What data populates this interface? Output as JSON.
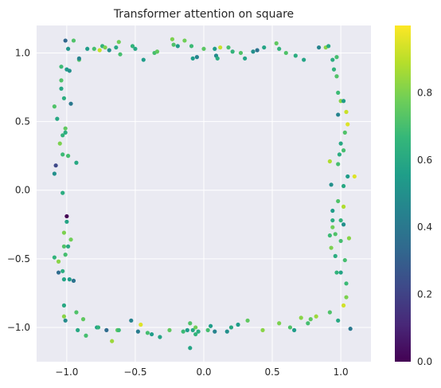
{
  "chart_data": {
    "type": "scatter",
    "title": "Transformer attention on square",
    "xlabel": "",
    "ylabel": "",
    "xlim": [
      -1.22,
      1.22
    ],
    "ylim": [
      -1.25,
      1.2
    ],
    "xticks": [
      -1.0,
      -0.5,
      0.0,
      0.5,
      1.0
    ],
    "xtick_labels": [
      "−1.0",
      "−0.5",
      "0.0",
      "0.5",
      "1.0"
    ],
    "yticks": [
      -1.0,
      -0.5,
      0.0,
      0.5,
      1.0
    ],
    "ytick_labels": [
      "−1.0",
      "−0.5",
      "0.0",
      "0.5",
      "1.0"
    ],
    "grid": true,
    "background": "#eaeaf2",
    "colorbar": {
      "colormap": "viridis",
      "range": [
        0.0,
        1.0
      ],
      "ticks": [
        0.0,
        0.2,
        0.4,
        0.6,
        0.8
      ],
      "tick_labels": [
        "0.0",
        "0.2",
        "0.4",
        "0.6",
        "0.8"
      ]
    },
    "points": [
      {
        "x": -1.01,
        "y": 1.09,
        "v": 0.33
      },
      {
        "x": -0.95,
        "y": 1.09,
        "v": 0.72
      },
      {
        "x": -0.99,
        "y": 1.03,
        "v": 0.52
      },
      {
        "x": -0.91,
        "y": 0.95,
        "v": 0.72
      },
      {
        "x": -0.91,
        "y": 0.96,
        "v": 0.45
      },
      {
        "x": -0.85,
        "y": 1.03,
        "v": 0.55
      },
      {
        "x": -0.8,
        "y": 1.03,
        "v": 0.7
      },
      {
        "x": -0.76,
        "y": 1.02,
        "v": 0.92
      },
      {
        "x": -0.74,
        "y": 1.05,
        "v": 0.65
      },
      {
        "x": -0.72,
        "y": 1.04,
        "v": 0.8
      },
      {
        "x": -0.69,
        "y": 1.02,
        "v": 0.5
      },
      {
        "x": -0.64,
        "y": 1.04,
        "v": 0.6
      },
      {
        "x": -0.62,
        "y": 1.08,
        "v": 0.78
      },
      {
        "x": -0.61,
        "y": 0.99,
        "v": 0.7
      },
      {
        "x": -0.52,
        "y": 1.05,
        "v": 0.65
      },
      {
        "x": -0.5,
        "y": 1.03,
        "v": 0.6
      },
      {
        "x": -0.44,
        "y": 0.95,
        "v": 0.55
      },
      {
        "x": -0.36,
        "y": 1.0,
        "v": 0.7
      },
      {
        "x": -0.34,
        "y": 1.01,
        "v": 0.75
      },
      {
        "x": -0.23,
        "y": 1.1,
        "v": 0.8
      },
      {
        "x": -0.22,
        "y": 1.06,
        "v": 0.72
      },
      {
        "x": -0.19,
        "y": 1.05,
        "v": 0.55
      },
      {
        "x": -0.14,
        "y": 1.09,
        "v": 0.78
      },
      {
        "x": -0.09,
        "y": 1.05,
        "v": 0.68
      },
      {
        "x": -0.08,
        "y": 0.96,
        "v": 0.55
      },
      {
        "x": -0.05,
        "y": 0.97,
        "v": 0.45
      },
      {
        "x": 0.0,
        "y": 1.03,
        "v": 0.74
      },
      {
        "x": 0.08,
        "y": 1.03,
        "v": 0.55
      },
      {
        "x": 0.09,
        "y": 0.98,
        "v": 0.48
      },
      {
        "x": 0.1,
        "y": 0.96,
        "v": 0.62
      },
      {
        "x": 0.12,
        "y": 1.04,
        "v": 0.92
      },
      {
        "x": 0.18,
        "y": 1.04,
        "v": 0.7
      },
      {
        "x": 0.21,
        "y": 1.01,
        "v": 0.65
      },
      {
        "x": 0.27,
        "y": 1.0,
        "v": 0.72
      },
      {
        "x": 0.3,
        "y": 0.96,
        "v": 0.58
      },
      {
        "x": 0.36,
        "y": 1.01,
        "v": 0.5
      },
      {
        "x": 0.39,
        "y": 1.02,
        "v": 0.38
      },
      {
        "x": 0.44,
        "y": 1.04,
        "v": 0.58
      },
      {
        "x": 0.53,
        "y": 1.07,
        "v": 0.75
      },
      {
        "x": 0.55,
        "y": 1.03,
        "v": 0.65
      },
      {
        "x": 0.6,
        "y": 1.0,
        "v": 0.72
      },
      {
        "x": 0.67,
        "y": 0.98,
        "v": 0.62
      },
      {
        "x": 0.73,
        "y": 0.95,
        "v": 0.58
      },
      {
        "x": 0.84,
        "y": 1.04,
        "v": 0.45
      },
      {
        "x": 0.89,
        "y": 1.04,
        "v": 0.82
      },
      {
        "x": 0.91,
        "y": 1.05,
        "v": 0.6
      },
      {
        "x": 0.94,
        "y": 0.95,
        "v": 0.62
      },
      {
        "x": 0.97,
        "y": 0.97,
        "v": 0.7
      },
      {
        "x": -1.04,
        "y": 0.9,
        "v": 0.68
      },
      {
        "x": -1.0,
        "y": 0.88,
        "v": 0.55
      },
      {
        "x": -0.98,
        "y": 0.87,
        "v": 0.5
      },
      {
        "x": -1.04,
        "y": 0.8,
        "v": 0.72
      },
      {
        "x": -1.04,
        "y": 0.74,
        "v": 0.6
      },
      {
        "x": -1.02,
        "y": 0.67,
        "v": 0.62
      },
      {
        "x": -1.09,
        "y": 0.61,
        "v": 0.72
      },
      {
        "x": -0.97,
        "y": 0.63,
        "v": 0.4
      },
      {
        "x": -1.07,
        "y": 0.52,
        "v": 0.6
      },
      {
        "x": -1.01,
        "y": 0.45,
        "v": 0.75
      },
      {
        "x": -1.01,
        "y": 0.42,
        "v": 0.62
      },
      {
        "x": -1.03,
        "y": 0.4,
        "v": 0.65
      },
      {
        "x": -1.05,
        "y": 0.34,
        "v": 0.8
      },
      {
        "x": -1.03,
        "y": 0.26,
        "v": 0.68
      },
      {
        "x": -0.99,
        "y": 0.25,
        "v": 0.7
      },
      {
        "x": -1.08,
        "y": 0.18,
        "v": 0.22
      },
      {
        "x": -1.09,
        "y": 0.12,
        "v": 0.5
      },
      {
        "x": -0.93,
        "y": 0.2,
        "v": 0.6
      },
      {
        "x": -1.03,
        "y": -0.02,
        "v": 0.62
      },
      {
        "x": -1.0,
        "y": -0.19,
        "v": 0.0
      },
      {
        "x": -1.0,
        "y": -0.23,
        "v": 0.58
      },
      {
        "x": -1.02,
        "y": -0.31,
        "v": 0.8
      },
      {
        "x": -0.97,
        "y": -0.36,
        "v": 0.78
      },
      {
        "x": -1.02,
        "y": -0.41,
        "v": 0.72
      },
      {
        "x": -0.99,
        "y": -0.41,
        "v": 0.6
      },
      {
        "x": -1.01,
        "y": -0.47,
        "v": 0.7
      },
      {
        "x": -1.09,
        "y": -0.49,
        "v": 0.65
      },
      {
        "x": -1.06,
        "y": -0.52,
        "v": 0.82
      },
      {
        "x": -1.06,
        "y": -0.6,
        "v": 0.35
      },
      {
        "x": -1.03,
        "y": -0.59,
        "v": 0.62
      },
      {
        "x": -1.02,
        "y": -0.65,
        "v": 0.58
      },
      {
        "x": -0.98,
        "y": -0.65,
        "v": 0.55
      },
      {
        "x": -0.95,
        "y": -0.66,
        "v": 0.38
      },
      {
        "x": -1.02,
        "y": -0.84,
        "v": 0.6
      },
      {
        "x": -1.02,
        "y": -0.92,
        "v": 0.82
      },
      {
        "x": -1.01,
        "y": -0.95,
        "v": 0.48
      },
      {
        "x": -0.93,
        "y": -0.89,
        "v": 0.72
      },
      {
        "x": -0.88,
        "y": -0.94,
        "v": 0.75
      },
      {
        "x": -0.92,
        "y": -1.02,
        "v": 0.6
      },
      {
        "x": -0.86,
        "y": -1.06,
        "v": 0.7
      },
      {
        "x": -0.78,
        "y": -1.0,
        "v": 0.55
      },
      {
        "x": -0.77,
        "y": -1.0,
        "v": 0.65
      },
      {
        "x": -0.71,
        "y": -1.02,
        "v": 0.35
      },
      {
        "x": -0.67,
        "y": -1.1,
        "v": 0.85
      },
      {
        "x": -0.63,
        "y": -1.02,
        "v": 0.75
      },
      {
        "x": -0.62,
        "y": -1.02,
        "v": 0.68
      },
      {
        "x": -0.53,
        "y": -0.95,
        "v": 0.45
      },
      {
        "x": -0.48,
        "y": -1.03,
        "v": 0.42
      },
      {
        "x": -0.46,
        "y": -0.98,
        "v": 0.95
      },
      {
        "x": -0.41,
        "y": -1.04,
        "v": 0.7
      },
      {
        "x": -0.38,
        "y": -1.05,
        "v": 0.55
      },
      {
        "x": -0.32,
        "y": -1.07,
        "v": 0.58
      },
      {
        "x": -0.25,
        "y": -1.02,
        "v": 0.75
      },
      {
        "x": -0.15,
        "y": -1.03,
        "v": 0.68
      },
      {
        "x": -0.12,
        "y": -1.02,
        "v": 0.55
      },
      {
        "x": -0.1,
        "y": -0.97,
        "v": 0.72
      },
      {
        "x": -0.08,
        "y": -1.02,
        "v": 0.6
      },
      {
        "x": -0.06,
        "y": -1.0,
        "v": 0.78
      },
      {
        "x": -0.04,
        "y": -1.03,
        "v": 0.62
      },
      {
        "x": -0.1,
        "y": -1.15,
        "v": 0.58
      },
      {
        "x": -0.06,
        "y": -1.05,
        "v": 0.65
      },
      {
        "x": 0.03,
        "y": -1.02,
        "v": 0.7
      },
      {
        "x": 0.05,
        "y": -0.99,
        "v": 0.55
      },
      {
        "x": 0.08,
        "y": -1.03,
        "v": 0.45
      },
      {
        "x": 0.17,
        "y": -1.03,
        "v": 0.5
      },
      {
        "x": 0.2,
        "y": -1.0,
        "v": 0.6
      },
      {
        "x": 0.25,
        "y": -0.98,
        "v": 0.55
      },
      {
        "x": 0.32,
        "y": -0.95,
        "v": 0.75
      },
      {
        "x": 0.43,
        "y": -1.02,
        "v": 0.82
      },
      {
        "x": 0.55,
        "y": -0.97,
        "v": 0.8
      },
      {
        "x": 0.63,
        "y": -1.0,
        "v": 0.72
      },
      {
        "x": 0.66,
        "y": -1.02,
        "v": 0.55
      },
      {
        "x": 0.71,
        "y": -0.93,
        "v": 0.82
      },
      {
        "x": 0.76,
        "y": -0.97,
        "v": 0.7
      },
      {
        "x": 0.78,
        "y": -0.94,
        "v": 0.75
      },
      {
        "x": 0.82,
        "y": -0.92,
        "v": 0.85
      },
      {
        "x": 0.92,
        "y": -0.89,
        "v": 0.72
      },
      {
        "x": 0.98,
        "y": -0.95,
        "v": 0.6
      },
      {
        "x": 1.02,
        "y": -0.84,
        "v": 0.93
      },
      {
        "x": 1.04,
        "y": -0.78,
        "v": 0.8
      },
      {
        "x": 1.07,
        "y": -1.01,
        "v": 0.4
      },
      {
        "x": 1.0,
        "y": 0.65,
        "v": 0.82
      },
      {
        "x": 1.02,
        "y": 0.65,
        "v": 0.55
      },
      {
        "x": 0.98,
        "y": 0.71,
        "v": 0.68
      },
      {
        "x": 1.04,
        "y": 0.57,
        "v": 0.92
      },
      {
        "x": 1.05,
        "y": 0.48,
        "v": 0.95
      },
      {
        "x": 0.98,
        "y": 0.55,
        "v": 0.45
      },
      {
        "x": 1.03,
        "y": 0.42,
        "v": 0.72
      },
      {
        "x": 1.0,
        "y": 0.34,
        "v": 0.6
      },
      {
        "x": 1.02,
        "y": 0.29,
        "v": 0.7
      },
      {
        "x": 0.99,
        "y": 0.26,
        "v": 0.62
      },
      {
        "x": 0.92,
        "y": 0.21,
        "v": 0.88
      },
      {
        "x": 0.98,
        "y": 0.19,
        "v": 0.7
      },
      {
        "x": 1.05,
        "y": 0.1,
        "v": 0.55
      },
      {
        "x": 1.1,
        "y": 0.1,
        "v": 0.95
      },
      {
        "x": 0.93,
        "y": 0.04,
        "v": 0.5
      },
      {
        "x": 1.02,
        "y": 0.03,
        "v": 0.6
      },
      {
        "x": 0.98,
        "y": -0.08,
        "v": 0.72
      },
      {
        "x": 1.02,
        "y": -0.12,
        "v": 0.88
      },
      {
        "x": 0.94,
        "y": -0.15,
        "v": 0.55
      },
      {
        "x": 0.94,
        "y": -0.22,
        "v": 0.62
      },
      {
        "x": 1.0,
        "y": -0.22,
        "v": 0.65
      },
      {
        "x": 1.02,
        "y": -0.25,
        "v": 0.5
      },
      {
        "x": 0.94,
        "y": -0.27,
        "v": 0.78
      },
      {
        "x": 0.96,
        "y": -0.32,
        "v": 0.72
      },
      {
        "x": 0.92,
        "y": -0.33,
        "v": 0.68
      },
      {
        "x": 1.06,
        "y": -0.35,
        "v": 0.82
      },
      {
        "x": 1.0,
        "y": -0.37,
        "v": 0.7
      },
      {
        "x": 0.93,
        "y": -0.42,
        "v": 0.8
      },
      {
        "x": 0.96,
        "y": -0.48,
        "v": 0.62
      },
      {
        "x": 1.03,
        "y": -0.51,
        "v": 0.7
      },
      {
        "x": 0.97,
        "y": -0.6,
        "v": 0.65
      },
      {
        "x": 1.0,
        "y": -0.6,
        "v": 0.58
      },
      {
        "x": 1.04,
        "y": -0.68,
        "v": 0.68
      },
      {
        "x": 0.97,
        "y": 0.83,
        "v": 0.72
      },
      {
        "x": 0.95,
        "y": 0.88,
        "v": 0.65
      }
    ]
  }
}
